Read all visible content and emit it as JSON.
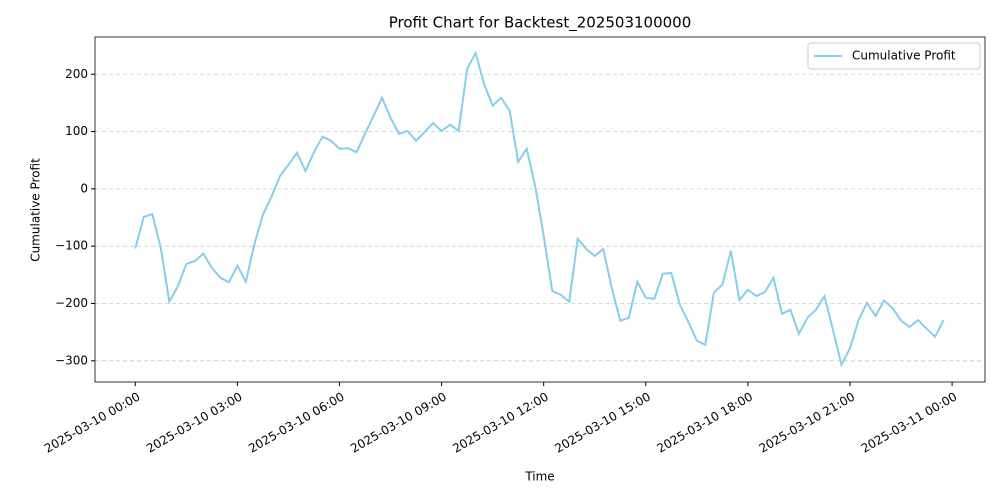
{
  "chart_data": {
    "type": "line",
    "title": "Profit Chart for Backtest_202503100000",
    "x_label": "Time",
    "y_label": "Cumulative Profit",
    "x": [
      "2025-03-10 00:00",
      "2025-03-10 00:15",
      "2025-03-10 00:30",
      "2025-03-10 00:45",
      "2025-03-10 01:00",
      "2025-03-10 01:15",
      "2025-03-10 01:30",
      "2025-03-10 01:45",
      "2025-03-10 02:00",
      "2025-03-10 02:15",
      "2025-03-10 02:30",
      "2025-03-10 02:45",
      "2025-03-10 03:00",
      "2025-03-10 03:15",
      "2025-03-10 03:30",
      "2025-03-10 03:45",
      "2025-03-10 04:00",
      "2025-03-10 04:15",
      "2025-03-10 04:30",
      "2025-03-10 04:45",
      "2025-03-10 05:00",
      "2025-03-10 05:15",
      "2025-03-10 05:30",
      "2025-03-10 05:45",
      "2025-03-10 06:00",
      "2025-03-10 06:15",
      "2025-03-10 06:30",
      "2025-03-10 06:45",
      "2025-03-10 07:00",
      "2025-03-10 07:15",
      "2025-03-10 07:30",
      "2025-03-10 07:45",
      "2025-03-10 08:00",
      "2025-03-10 08:15",
      "2025-03-10 08:30",
      "2025-03-10 08:45",
      "2025-03-10 09:00",
      "2025-03-10 09:15",
      "2025-03-10 09:30",
      "2025-03-10 09:45",
      "2025-03-10 10:00",
      "2025-03-10 10:15",
      "2025-03-10 10:30",
      "2025-03-10 10:45",
      "2025-03-10 11:00",
      "2025-03-10 11:15",
      "2025-03-10 11:30",
      "2025-03-10 11:45",
      "2025-03-10 12:00",
      "2025-03-10 12:15",
      "2025-03-10 12:30",
      "2025-03-10 12:45",
      "2025-03-10 13:00",
      "2025-03-10 13:15",
      "2025-03-10 13:30",
      "2025-03-10 13:45",
      "2025-03-10 14:00",
      "2025-03-10 14:15",
      "2025-03-10 14:30",
      "2025-03-10 14:45",
      "2025-03-10 15:00",
      "2025-03-10 15:15",
      "2025-03-10 15:30",
      "2025-03-10 15:45",
      "2025-03-10 16:00",
      "2025-03-10 16:15",
      "2025-03-10 16:30",
      "2025-03-10 16:45",
      "2025-03-10 17:00",
      "2025-03-10 17:15",
      "2025-03-10 17:30",
      "2025-03-10 17:45",
      "2025-03-10 18:00",
      "2025-03-10 18:15",
      "2025-03-10 18:30",
      "2025-03-10 18:45",
      "2025-03-10 19:00",
      "2025-03-10 19:15",
      "2025-03-10 19:30",
      "2025-03-10 19:45",
      "2025-03-10 20:00",
      "2025-03-10 20:15",
      "2025-03-10 20:30",
      "2025-03-10 20:45",
      "2025-03-10 21:00",
      "2025-03-10 21:15",
      "2025-03-10 21:30",
      "2025-03-10 21:45",
      "2025-03-10 22:00",
      "2025-03-10 22:15",
      "2025-03-10 22:30",
      "2025-03-10 22:45",
      "2025-03-10 23:00",
      "2025-03-10 23:15",
      "2025-03-10 23:30",
      "2025-03-10 23:45"
    ],
    "series": [
      {
        "name": "Cumulative Profit",
        "color": "#87ceeb",
        "values": [
          -104,
          -49,
          -44,
          -103,
          -197,
          -170,
          -131,
          -126,
          -113,
          -138,
          -155,
          -163,
          -134,
          -162,
          -96,
          -45,
          -14,
          22,
          42,
          63,
          31,
          64,
          91,
          84,
          70,
          71,
          64,
          96,
          127,
          159,
          124,
          96,
          101,
          84,
          99,
          115,
          101,
          112,
          101,
          209,
          237,
          183,
          145,
          159,
          136,
          47,
          70,
          5,
          -82,
          -178,
          -185,
          -197,
          -87,
          -105,
          -117,
          -105,
          -173,
          -230,
          -225,
          -162,
          -190,
          -192,
          -148,
          -147,
          -202,
          -232,
          -265,
          -272,
          -181,
          -167,
          -108,
          -194,
          -176,
          -187,
          -180,
          -155,
          -218,
          -211,
          -253,
          -225,
          -211,
          -187,
          -246,
          -307,
          -278,
          -229,
          -199,
          -222,
          -195,
          -208,
          -230,
          -241,
          -229,
          -244,
          -258,
          -229
        ]
      }
    ],
    "xlim": [
      "2025-03-09 22:49",
      "2025-03-11 00:58"
    ],
    "xticks": [
      "2025-03-10 00:00",
      "2025-03-10 03:00",
      "2025-03-10 06:00",
      "2025-03-10 09:00",
      "2025-03-10 12:00",
      "2025-03-10 15:00",
      "2025-03-10 18:00",
      "2025-03-10 21:00",
      "2025-03-11 00:00"
    ],
    "ylim": [
      -337,
      265
    ],
    "yticks": [
      {
        "value": -300,
        "label": "−300"
      },
      {
        "value": -200,
        "label": "−200"
      },
      {
        "value": -100,
        "label": "−100"
      },
      0,
      100,
      200
    ],
    "grid": true,
    "legend": "upper right"
  }
}
